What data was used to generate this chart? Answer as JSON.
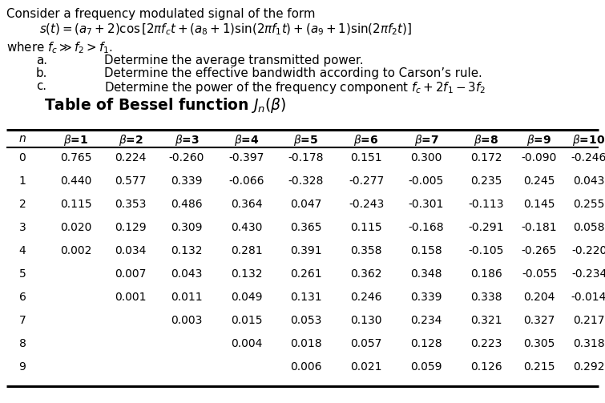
{
  "preamble_line1": "Consider a frequency modulated signal of the form",
  "preamble_line2": "    $s(t) = (a_7 + 2)\\cos\\left[2\\pi f_c t + (a_8 + 1)\\sin(2\\pi f_1 t) + (a_9 + 1)\\sin(2\\pi f_2 t)\\right]$",
  "preamble_line3": "where $f_c \\gg f_2 > f_1$.",
  "sub_items": [
    [
      "a.",
      "Determine the average transmitted power."
    ],
    [
      "b.",
      "Determine the effective bandwidth according to Carson’s rule."
    ],
    [
      "c.",
      "Determine the power of the frequency component $f_c + 2f_1 - 3f_2$"
    ]
  ],
  "table_title": "Table of Bessel function $J_n(\\beta)$",
  "header_row": [
    "$n$",
    "$\\beta$=1",
    "$\\beta$=2",
    "$\\beta$=3",
    "$\\beta$=4",
    "$\\beta$=5",
    "$\\beta$=6",
    "$\\beta$=7",
    "$\\beta$=8",
    "$\\beta$=9",
    "$\\beta$=10"
  ],
  "table_data": [
    [
      "0",
      "0.765",
      "0.224",
      "-0.260",
      "-0.397",
      "-0.178",
      "0.151",
      "0.300",
      "0.172",
      "-0.090",
      "-0.246"
    ],
    [
      "1",
      "0.440",
      "0.577",
      "0.339",
      "-0.066",
      "-0.328",
      "-0.277",
      "-0.005",
      "0.235",
      "0.245",
      "0.043"
    ],
    [
      "2",
      "0.115",
      "0.353",
      "0.486",
      "0.364",
      "0.047",
      "-0.243",
      "-0.301",
      "-0.113",
      "0.145",
      "0.255"
    ],
    [
      "3",
      "0.020",
      "0.129",
      "0.309",
      "0.430",
      "0.365",
      "0.115",
      "-0.168",
      "-0.291",
      "-0.181",
      "0.058"
    ],
    [
      "4",
      "0.002",
      "0.034",
      "0.132",
      "0.281",
      "0.391",
      "0.358",
      "0.158",
      "-0.105",
      "-0.265",
      "-0.220"
    ],
    [
      "5",
      "",
      "0.007",
      "0.043",
      "0.132",
      "0.261",
      "0.362",
      "0.348",
      "0.186",
      "-0.055",
      "-0.234"
    ],
    [
      "6",
      "",
      "0.001",
      "0.011",
      "0.049",
      "0.131",
      "0.246",
      "0.339",
      "0.338",
      "0.204",
      "-0.014"
    ],
    [
      "7",
      "",
      "",
      "0.003",
      "0.015",
      "0.053",
      "0.130",
      "0.234",
      "0.321",
      "0.327",
      "0.217"
    ],
    [
      "8",
      "",
      "",
      "",
      "0.004",
      "0.018",
      "0.057",
      "0.128",
      "0.223",
      "0.305",
      "0.318"
    ],
    [
      "9",
      "",
      "",
      "",
      "",
      "0.006",
      "0.021",
      "0.059",
      "0.126",
      "0.215",
      "0.292"
    ]
  ],
  "bg_color": "#ffffff",
  "text_color": "#000000",
  "fs_pre": 10.8,
  "fs_tbl": 10.0,
  "fs_title": 13.5
}
